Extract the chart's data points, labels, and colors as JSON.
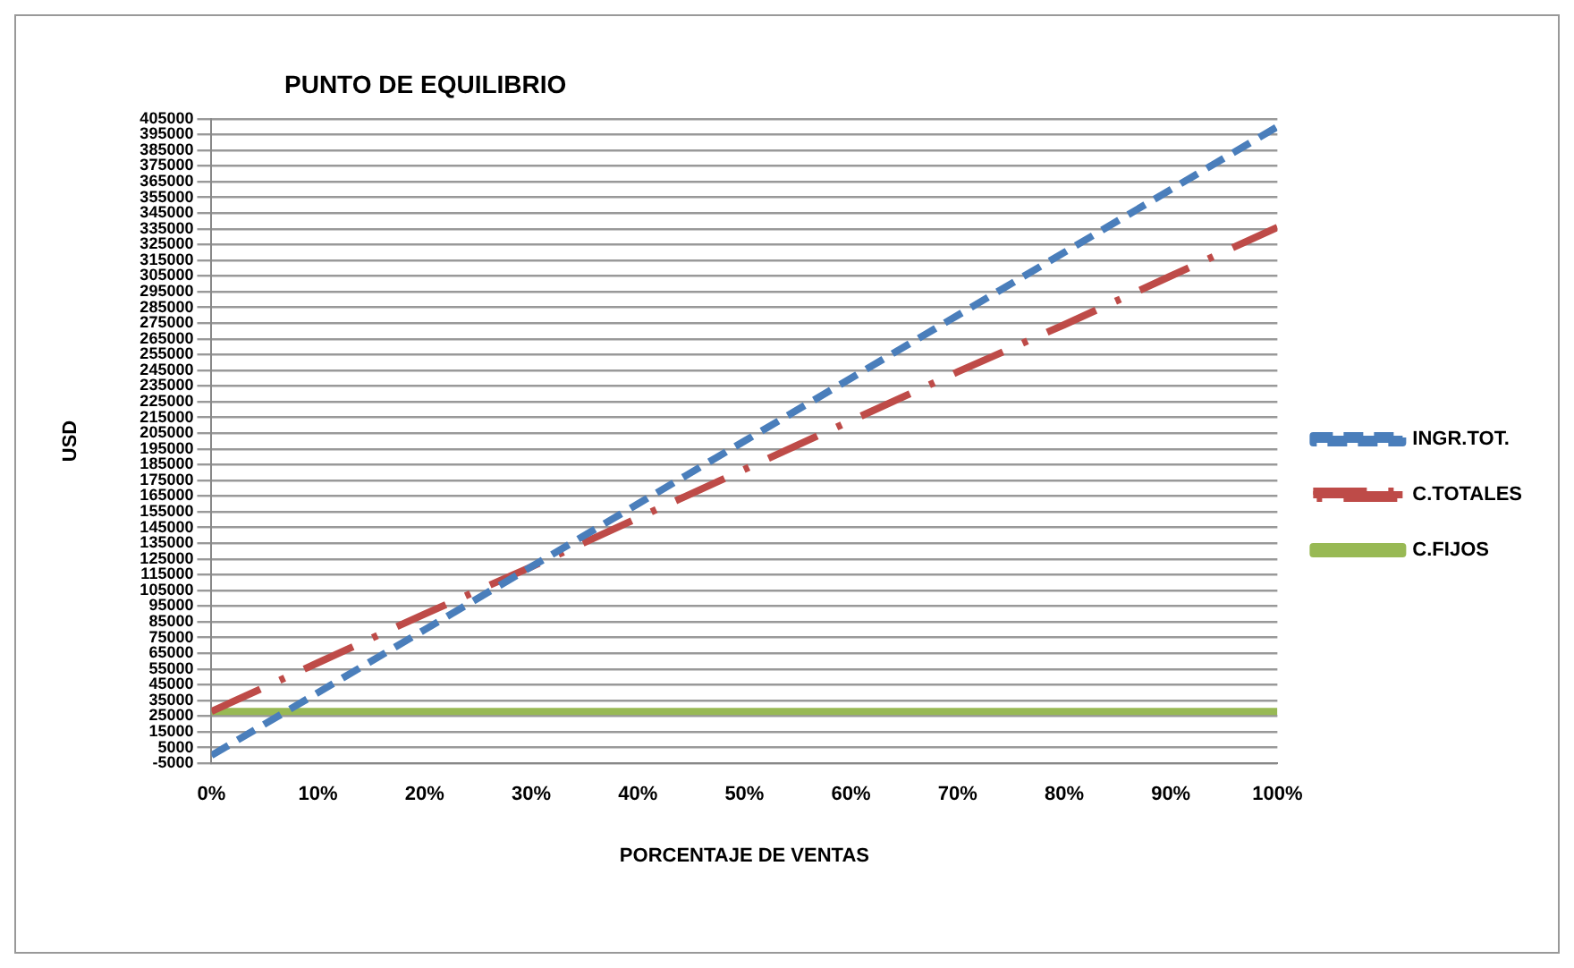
{
  "chart_data": {
    "type": "line",
    "title": "PUNTO DE EQUILIBRIO",
    "xlabel": "PORCENTAJE DE VENTAS",
    "ylabel": "USD",
    "x": [
      0,
      10,
      20,
      30,
      40,
      50,
      60,
      70,
      80,
      90,
      100
    ],
    "series": [
      {
        "name": "INGR.TOT.",
        "color": "#4a7ebb",
        "line_style": "dashed",
        "values": [
          0,
          40000,
          80000,
          120000,
          160000,
          200000,
          240000,
          280000,
          320000,
          360000,
          400000
        ]
      },
      {
        "name": "C.TOTALES",
        "color": "#be4b48",
        "line_style": "dashdot",
        "values": [
          28000,
          59000,
          90000,
          120000,
          151000,
          182000,
          213000,
          244000,
          274000,
          305000,
          336000
        ]
      },
      {
        "name": "C.FIJOS",
        "color": "#98b954",
        "line_style": "solid",
        "values": [
          28000,
          28000,
          28000,
          28000,
          28000,
          28000,
          28000,
          28000,
          28000,
          28000,
          28000
        ]
      }
    ],
    "xlim": [
      0,
      100
    ],
    "xticks": [
      {
        "value": 0,
        "label": "0%"
      },
      {
        "value": 10,
        "label": "10%"
      },
      {
        "value": 20,
        "label": "20%"
      },
      {
        "value": 30,
        "label": "30%"
      },
      {
        "value": 40,
        "label": "40%"
      },
      {
        "value": 50,
        "label": "50%"
      },
      {
        "value": 60,
        "label": "60%"
      },
      {
        "value": 70,
        "label": "70%"
      },
      {
        "value": 80,
        "label": "80%"
      },
      {
        "value": 90,
        "label": "90%"
      },
      {
        "value": 100,
        "label": "100%"
      }
    ],
    "ylim": [
      -5000,
      405000
    ],
    "yticks": [
      -5000,
      5000,
      15000,
      25000,
      35000,
      45000,
      55000,
      65000,
      75000,
      85000,
      95000,
      105000,
      115000,
      125000,
      135000,
      145000,
      155000,
      165000,
      175000,
      185000,
      195000,
      205000,
      215000,
      225000,
      235000,
      245000,
      255000,
      265000,
      275000,
      285000,
      295000,
      305000,
      315000,
      325000,
      335000,
      345000,
      355000,
      365000,
      375000,
      385000,
      395000,
      405000
    ],
    "grid": "y",
    "legend": "right",
    "marker": "none"
  }
}
